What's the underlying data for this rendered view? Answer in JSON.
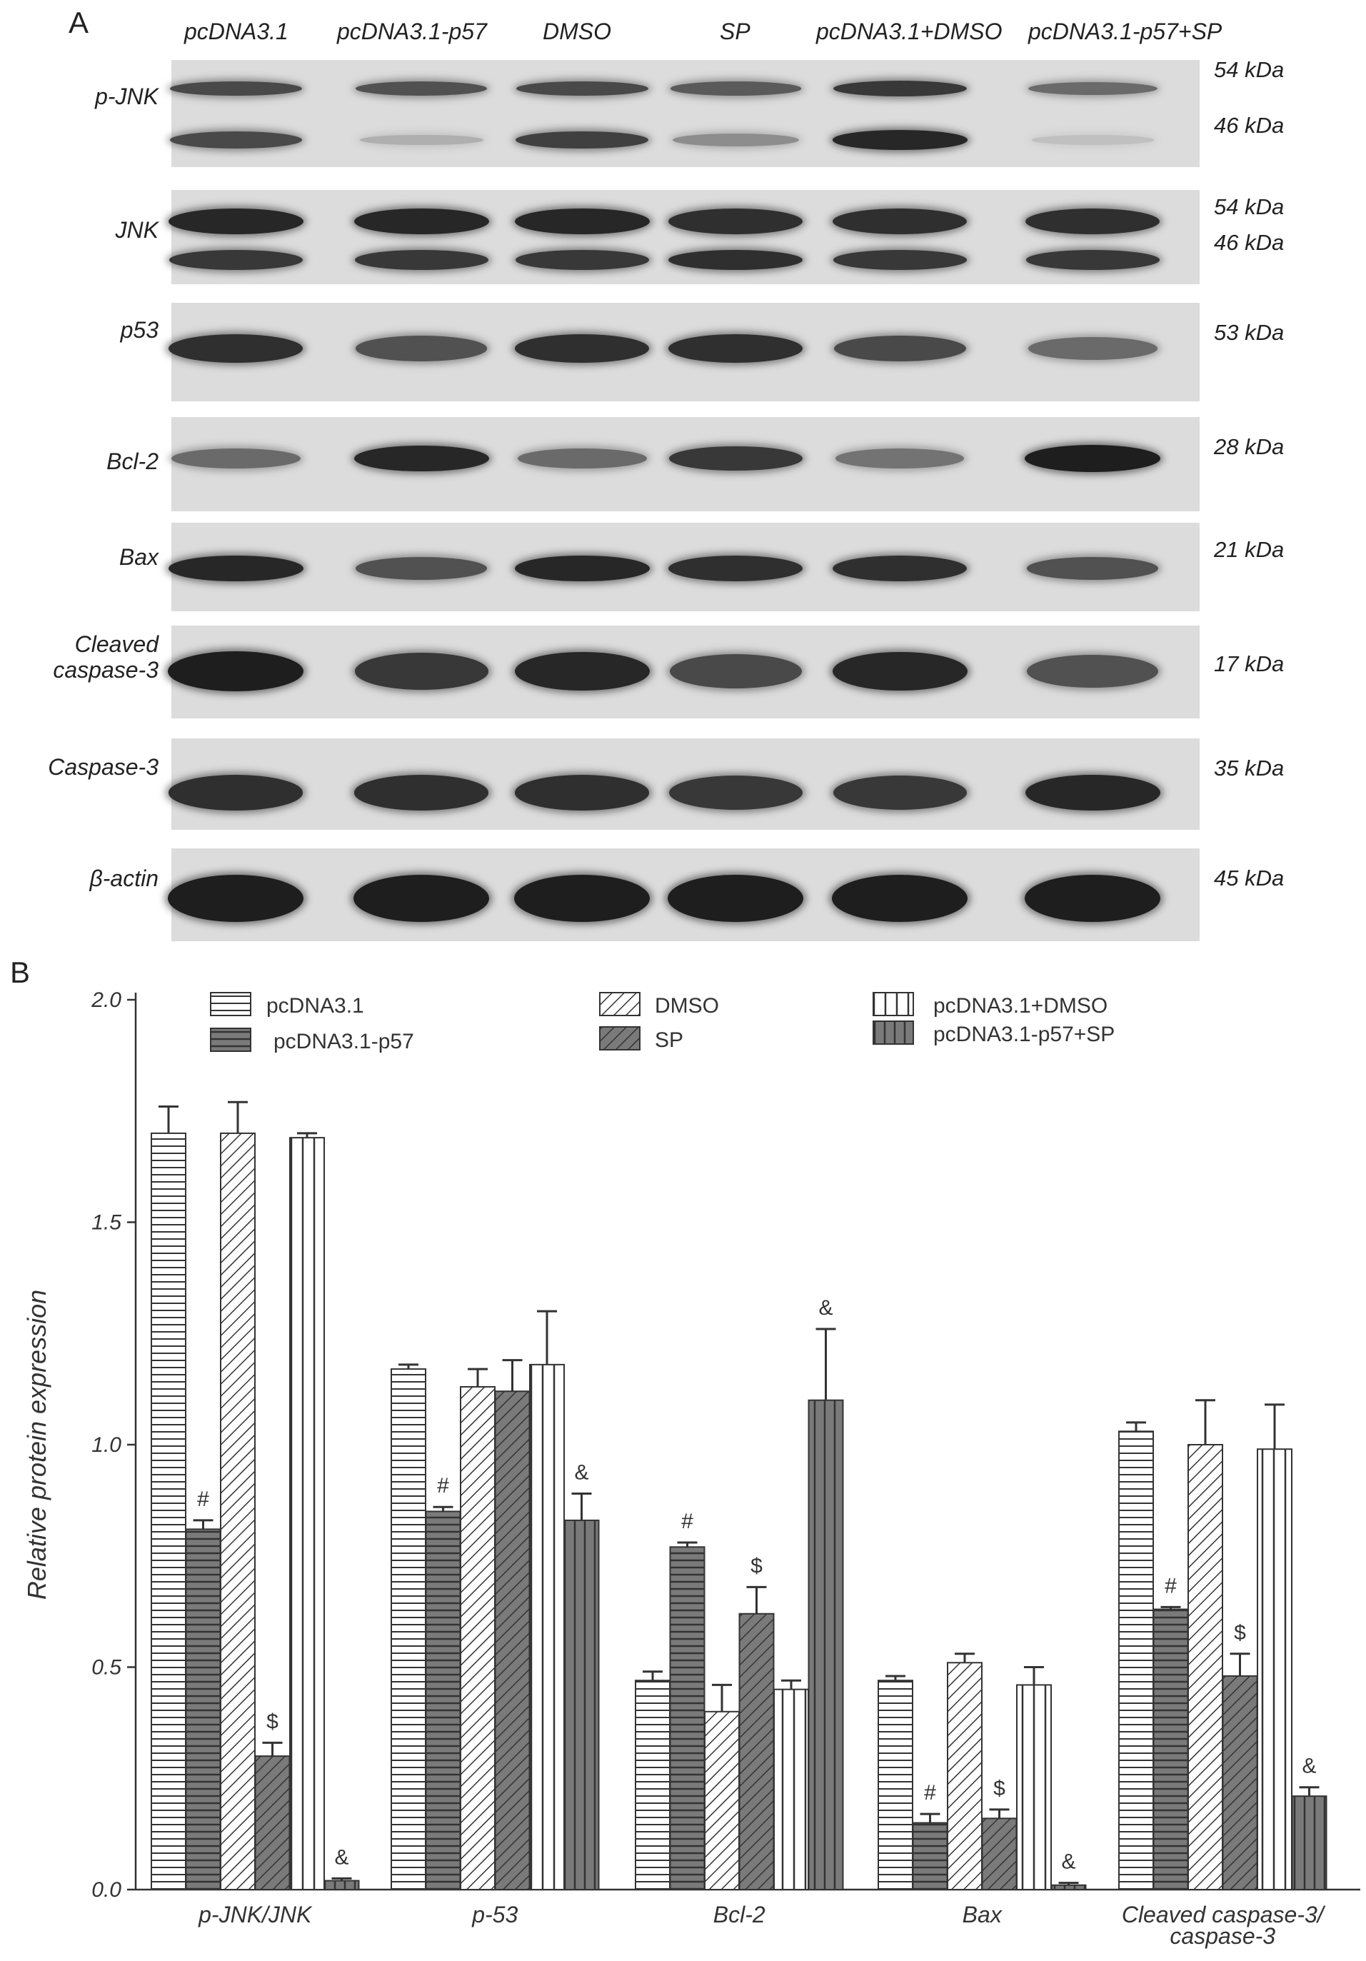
{
  "panel_a": {
    "letter": "A",
    "lanes": [
      "pcDNA3.1",
      "pcDNA3.1-p57",
      "DMSO",
      "SP",
      "pcDNA3.1+DMSO",
      "pcDNA3.1-p57+SP"
    ],
    "blots": [
      {
        "label": "p-JNK",
        "kda": [
          "54 kDa",
          "46 kDa"
        ],
        "intensity_upper": [
          0.75,
          0.7,
          0.75,
          0.65,
          0.85,
          0.55
        ],
        "intensity_lower": [
          0.75,
          0.15,
          0.8,
          0.35,
          0.95,
          0.05
        ]
      },
      {
        "label": "JNK",
        "kda": [
          "54 kDa",
          "46 kDa"
        ],
        "intensity_upper": [
          0.95,
          0.95,
          0.95,
          0.9,
          0.9,
          0.9
        ],
        "intensity_lower": [
          0.85,
          0.85,
          0.85,
          0.9,
          0.85,
          0.85
        ]
      },
      {
        "label": "p53",
        "kda": [
          "53 kDa"
        ],
        "intensity": [
          0.9,
          0.7,
          0.9,
          0.9,
          0.75,
          0.55
        ]
      },
      {
        "label": "Bcl-2",
        "kda": [
          "28 kDa"
        ],
        "intensity": [
          0.55,
          0.95,
          0.55,
          0.85,
          0.5,
          1.0
        ]
      },
      {
        "label": "Bax",
        "kda": [
          "21 kDa"
        ],
        "intensity": [
          0.95,
          0.7,
          0.95,
          0.9,
          0.9,
          0.7
        ]
      },
      {
        "label_line1": "Cleaved",
        "label_line2": "caspase-3",
        "kda": [
          "17 kDa"
        ],
        "intensity": [
          1.0,
          0.85,
          0.95,
          0.75,
          0.95,
          0.7
        ]
      },
      {
        "label": "Caspase-3",
        "kda": [
          "35 kDa"
        ],
        "intensity": [
          0.9,
          0.9,
          0.9,
          0.85,
          0.85,
          0.95
        ]
      },
      {
        "label": "β-actin",
        "kda": [
          "45 kDa"
        ],
        "intensity": [
          1.0,
          1.0,
          1.0,
          1.0,
          1.0,
          1.0
        ]
      }
    ]
  },
  "panel_b": {
    "letter": "B"
  },
  "chart_data": {
    "type": "bar",
    "ylabel": "Relative protein expression",
    "ylim": [
      0,
      2.0
    ],
    "yticks": [
      "0.0",
      "0.5",
      "1.0",
      "1.5",
      "2.0"
    ],
    "categories": [
      "p-JNK/JNK",
      "p-53",
      "Bcl-2",
      "Bax",
      "Cleaved caspase-3/\ncaspase-3"
    ],
    "legend_position": "top",
    "series": [
      {
        "name": "pcDNA3.1",
        "pattern": "hlines",
        "values": [
          1.7,
          1.17,
          0.47,
          0.47,
          1.03
        ],
        "errors": [
          0.06,
          0.01,
          0.02,
          0.01,
          0.02
        ],
        "marks": [
          "",
          "",
          "",
          "",
          ""
        ]
      },
      {
        "name": "pcDNA3.1-p57",
        "pattern": "dark-hlines",
        "values": [
          0.81,
          0.85,
          0.77,
          0.15,
          0.63
        ],
        "errors": [
          0.02,
          0.01,
          0.01,
          0.02,
          0.005
        ],
        "marks": [
          "#",
          "#",
          "#",
          "#",
          "#"
        ]
      },
      {
        "name": "DMSO",
        "pattern": "diag",
        "values": [
          1.7,
          1.13,
          0.4,
          0.51,
          1.0
        ],
        "errors": [
          0.07,
          0.04,
          0.06,
          0.02,
          0.1
        ],
        "marks": [
          "",
          "",
          "",
          "",
          ""
        ]
      },
      {
        "name": "SP",
        "pattern": "dark-diag",
        "values": [
          0.3,
          1.12,
          0.62,
          0.16,
          0.48
        ],
        "errors": [
          0.03,
          0.07,
          0.06,
          0.02,
          0.05
        ],
        "marks": [
          "$",
          "",
          "$",
          "$",
          "$"
        ]
      },
      {
        "name": "pcDNA3.1+DMSO",
        "pattern": "vlines",
        "values": [
          1.69,
          1.18,
          0.45,
          0.46,
          0.99
        ],
        "errors": [
          0.01,
          0.12,
          0.02,
          0.04,
          0.1
        ],
        "marks": [
          "",
          "",
          "",
          "",
          ""
        ]
      },
      {
        "name": "pcDNA3.1-p57+SP",
        "pattern": "dark-vlines",
        "values": [
          0.02,
          0.83,
          1.1,
          0.01,
          0.21
        ],
        "errors": [
          0.005,
          0.06,
          0.16,
          0.005,
          0.02
        ],
        "marks": [
          "&",
          "&",
          "&",
          "&",
          "&"
        ]
      }
    ]
  }
}
